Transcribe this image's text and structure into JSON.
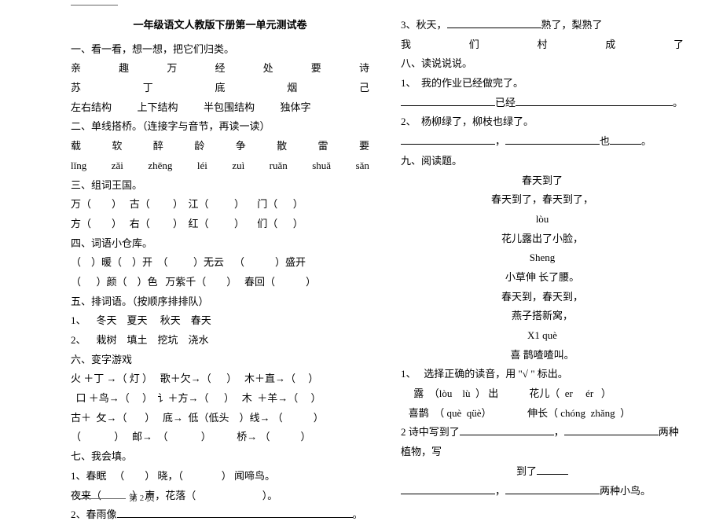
{
  "title": "一年级语文人教版下册第一单元测试卷",
  "left": {
    "l1": "一、看一看，想一想，把它们归类。",
    "row1": [
      "亲",
      "趣",
      "万",
      "经",
      "处",
      "要",
      "诗"
    ],
    "row2": [
      "苏",
      "丁",
      "底",
      "烟",
      "己"
    ],
    "l4": "左右结构          上下结构          半包围结构          独体字",
    "l5": "二、单线搭桥。（连接字与音节，再读一读）",
    "row3": [
      "载",
      "软",
      "醉",
      "龄",
      "争",
      "散",
      "雷",
      "要"
    ],
    "row4": [
      "lǐng",
      "zǎi",
      "zhēng",
      "léi",
      "zuì",
      "ruǎn",
      "shuǎ",
      "sǎn"
    ],
    "l8": "三、组词王国。",
    "l9": "万（        ）   古（         ）  江（          ）     门（      ）",
    "l10": "方（        ）   右（         ）  红（          ）     们（      ）",
    "l11": "四、词语小仓库。",
    "l12": "（    ）暖（    ）开  （          ）无云    （            ）盛开",
    "l13": "（      ）颜（    ）色   万紫千（        ）   春回（            ）",
    "l14": "五、排词语。（按顺序排排队）",
    "l15": "1、    冬天    夏天     秋天    春天",
    "l16": "2、    栽树    填土    挖坑    浇水",
    "l17": "六、变字游戏",
    "l18": "火 ＋丁 →（ 灯 ）   歌＋欠→（      ）   木＋直→（     ）",
    "l19": "  口 ＋鸟→（     ）  讠＋方→（      ）   木  ＋羊→（     ）",
    "l20": "古＋  攵→（       ）   底→  低（低头    ）线→ （            ）",
    "l21": "（             ）   邮→  （             ）          桥→ （            ）",
    "l22": "七、我会填。",
    "l23a": "1、春眠   （        ） 晓，（               ） 闻啼鸟。",
    "l23b": "夜来（            ） 声，花落（                          ）。",
    "l24": " 2、春雨像"
  },
  "right": {
    "r1a": "3、秋天，",
    "r1b": "熟了，梨熟了",
    "r2": [
      "我",
      "们",
      "村",
      "成",
      "了"
    ],
    "r3": "八、读说说说。",
    "r4": "1、  我的作业已经做完了。",
    "r5mid": "已经",
    "r5end": "。",
    "r6": "2、  杨柳绿了，柳枝也绿了。",
    "r7mid": "，",
    "r7end": "也",
    "r7dot": "。",
    "r8": "九、阅读题。",
    "r9": "春天到了",
    "r10": "春天到了，春天到了，",
    "r11": "lòu",
    "r12": "花儿露出了小脸，",
    "r13": "Sheng",
    "r14": "   小草伸   长了腰。",
    "r15": "春天到，春天到，",
    "r16": "燕子搭新窝，",
    "r17": "X1  què",
    "r18": "喜  鹊喳喳叫。",
    "r19": "1、   选择正确的读音，用 \"√ \" 标出。",
    "r20": "     露  （lòu    lù  ） 出            花儿（  er     ér   ）",
    "r21": "   喜鹊  （ què  qüè）              伸长（ chóng  zhǎng  ）",
    "r22a": "2 诗中写到了",
    "r22b": "，",
    "r22c": "两种植物，写",
    "r23a": "到了",
    "r24a": "，",
    "r24b": "两种小鸟。"
  },
  "footer": "第 2 页"
}
